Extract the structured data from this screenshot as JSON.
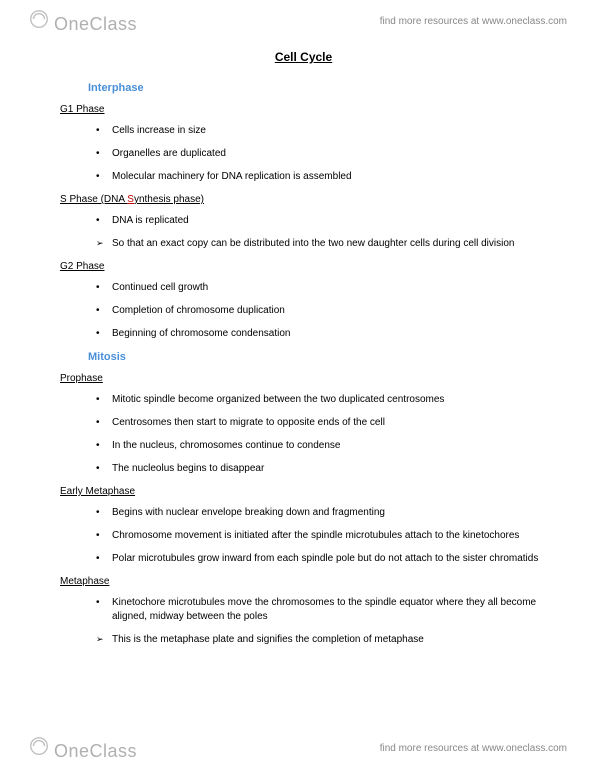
{
  "brand": {
    "logo_text": "OneClass",
    "tagline": "find more resources at www.oneclass.com"
  },
  "doc": {
    "title": "Cell Cycle",
    "sections": [
      {
        "heading": "Interphase",
        "heading_color": "#4a90d9",
        "subsections": [
          {
            "title_pre": "G1 Phase",
            "title_html": "G1 Phase",
            "items": [
              {
                "text": "Cells increase in size",
                "type": "bullet"
              },
              {
                "text": "Organelles are duplicated",
                "type": "bullet"
              },
              {
                "text": "Molecular machinery for DNA replication is assembled",
                "type": "bullet"
              }
            ]
          },
          {
            "title_pre": "S Phase (DNA ",
            "highlight": "S",
            "title_post": "ynthesis phase)",
            "items": [
              {
                "text": "DNA is replicated",
                "type": "bullet"
              },
              {
                "text": "So that an exact copy can be distributed into the two new daughter cells during cell division",
                "type": "arrow"
              }
            ]
          },
          {
            "title_pre": "G2 Phase",
            "items": [
              {
                "text": "Continued cell growth",
                "type": "bullet"
              },
              {
                "text": "Completion of chromosome duplication",
                "type": "bullet"
              },
              {
                "text": "Beginning of chromosome condensation",
                "type": "bullet"
              }
            ]
          }
        ]
      },
      {
        "heading": "Mitosis",
        "heading_color": "#4a90d9",
        "subsections": [
          {
            "title_pre": "Prophase",
            "items": [
              {
                "text": "Mitotic spindle become organized between the two duplicated centrosomes",
                "type": "bullet"
              },
              {
                "text": "Centrosomes then start to migrate to opposite ends of the cell",
                "type": "bullet"
              },
              {
                "text": "In the nucleus, chromosomes continue to condense",
                "type": "bullet"
              },
              {
                "text": "The nucleolus begins to disappear",
                "type": "bullet"
              }
            ]
          },
          {
            "title_pre": "Early Metaphase",
            "items": [
              {
                "text": "Begins with nuclear envelope breaking down and fragmenting",
                "type": "bullet"
              },
              {
                "text": "Chromosome movement is initiated after the spindle microtubules attach to the kinetochores",
                "type": "bullet"
              },
              {
                "text": "Polar microtubules grow inward from each spindle pole but do not attach to the sister chromatids",
                "type": "bullet"
              }
            ]
          },
          {
            "title_pre": "Metaphase",
            "items": [
              {
                "text": "Kinetochore microtubules move the chromosomes to the spindle equator where they all become aligned, midway between the poles",
                "type": "bullet"
              },
              {
                "text": "This is the metaphase plate and signifies the completion of metaphase",
                "type": "arrow"
              }
            ]
          }
        ]
      }
    ]
  }
}
